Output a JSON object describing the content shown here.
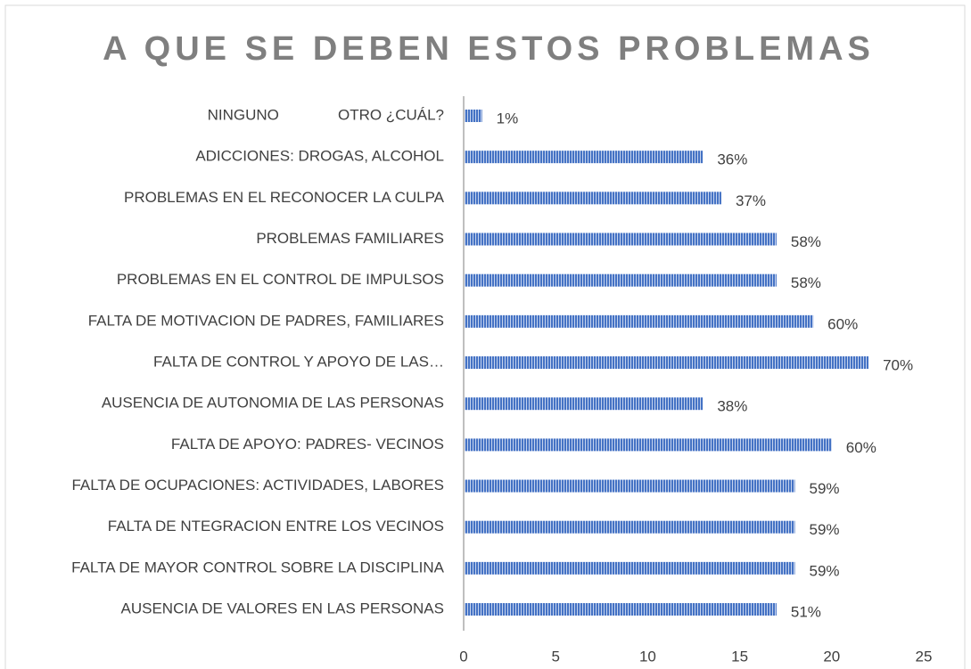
{
  "chart_data": {
    "type": "barh",
    "title": "A QUE SE DEBEN ESTOS PROBLEMAS",
    "categories": [
      "NINGUNO              OTRO ¿CUÁL?",
      "ADICCIONES: DROGAS, ALCOHOL",
      "PROBLEMAS EN EL RECONOCER LA CULPA",
      "PROBLEMAS FAMILIARES",
      "PROBLEMAS EN EL CONTROL DE IMPULSOS",
      "FALTA DE MOTIVACION DE PADRES, FAMILIARES",
      "FALTA DE CONTROL Y APOYO DE LAS…",
      "AUSENCIA DE AUTONOMIA DE LAS PERSONAS",
      "FALTA DE APOYO: PADRES- VECINOS",
      "FALTA DE OCUPACIONES: ACTIVIDADES, LABORES",
      "FALTA DE NTEGRACION ENTRE LOS VECINOS",
      "FALTA DE MAYOR CONTROL SOBRE LA DISCIPLINA",
      "AUSENCIA DE VALORES EN LAS PERSONAS"
    ],
    "values": [
      1,
      13,
      14,
      17,
      17,
      19,
      22,
      13,
      20,
      18,
      18,
      18,
      17
    ],
    "value_labels": [
      "1%",
      "36%",
      "37%",
      "58%",
      "58%",
      "60%",
      "70%",
      "38%",
      "60%",
      "59%",
      "59%",
      "59%",
      "51%"
    ],
    "color": "#4472c4",
    "xlim": [
      0,
      25
    ],
    "xticks": [
      0,
      5,
      10,
      15,
      20,
      25
    ],
    "grid": false
  }
}
